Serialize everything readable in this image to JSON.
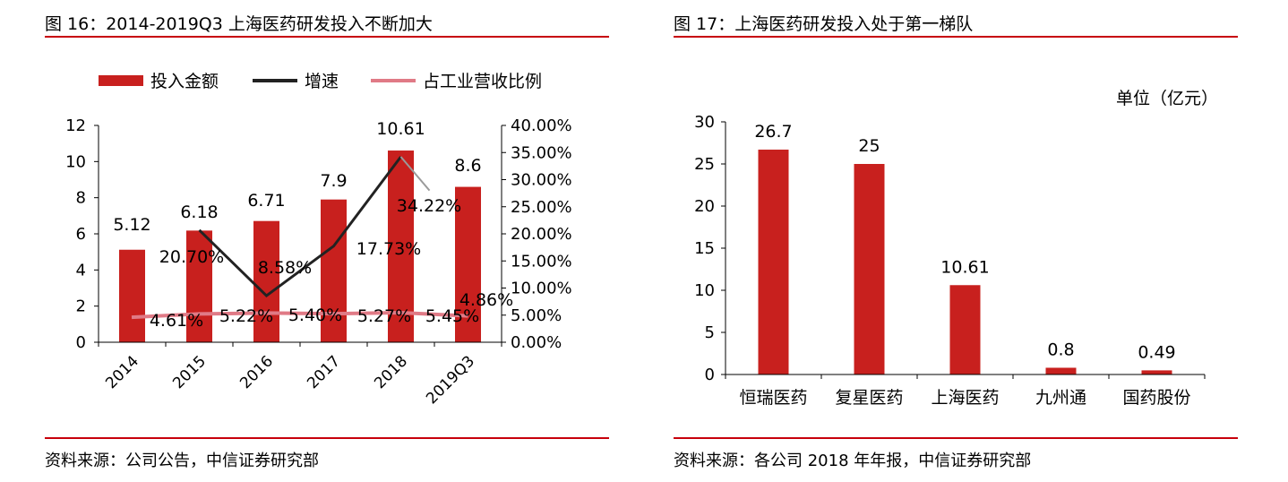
{
  "colors": {
    "accent": "#c7000b",
    "bar": "#c8201e",
    "growth_line": "#222222",
    "ratio_line": "#e07a86"
  },
  "left": {
    "title": "图 16：2014-2019Q3 上海医药研发投入不断加大",
    "source": "资料来源：公司公告，中信证券研究部"
  },
  "right": {
    "title": "图 17：上海医药研发投入处于第一梯队",
    "source": "资料来源：各公司 2018 年年报，中信证券研究部"
  },
  "chart_data": [
    {
      "type": "bar",
      "categories": [
        "2014",
        "2015",
        "2016",
        "2017",
        "2018",
        "2019Q3"
      ],
      "series": [
        {
          "name": "投入金额",
          "type": "bar",
          "axis": "left",
          "values": [
            5.12,
            6.18,
            6.71,
            7.9,
            10.61,
            8.6
          ],
          "labels": [
            "5.12",
            "6.18",
            "6.71",
            "7.9",
            "10.61",
            "8.6"
          ]
        },
        {
          "name": "增速",
          "type": "line",
          "axis": "right",
          "values": [
            null,
            20.7,
            8.58,
            17.73,
            34.22,
            28.0
          ],
          "labels": [
            "",
            "20.70%",
            "8.58%",
            "17.73%",
            "34.22%",
            ""
          ]
        },
        {
          "name": "占工业营收比例",
          "type": "line",
          "axis": "right",
          "values": [
            4.61,
            5.22,
            5.4,
            5.27,
            5.45,
            4.86
          ],
          "labels": [
            "4.61%",
            "5.22%",
            "5.40%",
            "5.27%",
            "5.45%",
            "4.86%"
          ]
        }
      ],
      "ylim": [
        0,
        12
      ],
      "yticks": [
        "0",
        "2",
        "4",
        "6",
        "8",
        "10",
        "12"
      ],
      "y2lim": [
        0,
        40
      ],
      "y2ticks": [
        "0.00%",
        "5.00%",
        "10.00%",
        "15.00%",
        "20.00%",
        "25.00%",
        "30.00%",
        "35.00%",
        "40.00%"
      ],
      "legend_position": "top",
      "grid": false
    },
    {
      "type": "bar",
      "unit_label": "单位（亿元）",
      "categories": [
        "恒瑞医药",
        "复星医药",
        "上海医药",
        "九州通",
        "国药股份"
      ],
      "values": [
        26.7,
        25,
        10.61,
        0.8,
        0.49
      ],
      "labels": [
        "26.7",
        "25",
        "10.61",
        "0.8",
        "0.49"
      ],
      "ylim": [
        0,
        30
      ],
      "yticks": [
        "0",
        "5",
        "10",
        "15",
        "20",
        "25",
        "30"
      ],
      "grid": false
    }
  ]
}
